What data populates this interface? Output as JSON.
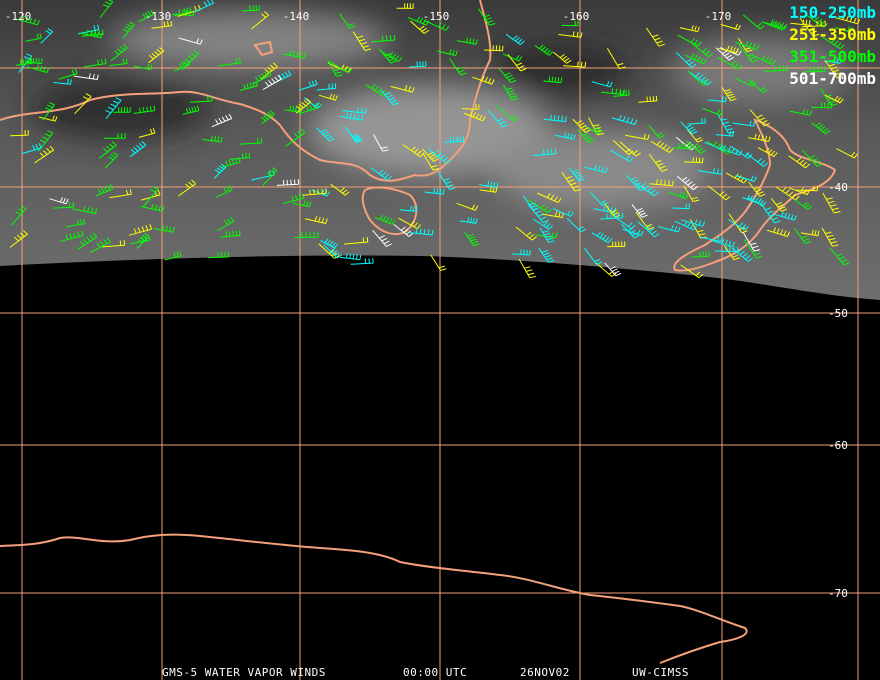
{
  "longitude_labels": [
    "-120",
    "-130",
    "-140",
    "-150",
    "-160",
    "-170"
  ],
  "latitude_labels": [
    "-40",
    "-50",
    "-60",
    "-70"
  ],
  "legend": [
    {
      "label": "150-250mb",
      "color": "#00ffff"
    },
    {
      "label": "251-350mb",
      "color": "#ffff00"
    },
    {
      "label": "351-500mb",
      "color": "#00ff00"
    },
    {
      "label": "501-700mb",
      "color": "#ffffff"
    }
  ],
  "footer": [
    "GMS-5 WATER VAPOR WINDS",
    "00:00 UTC",
    "26NOV02",
    "UW-CIMSS"
  ]
}
